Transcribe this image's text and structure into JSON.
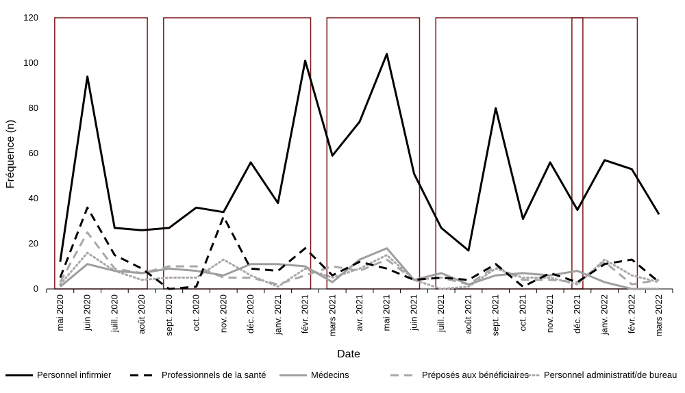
{
  "chart_data": {
    "type": "line",
    "xlabel": "Date",
    "ylabel": "Fréquence (n)",
    "ylim": [
      0,
      120
    ],
    "yticks": [
      0,
      20,
      40,
      60,
      80,
      100,
      120
    ],
    "grid": false,
    "legend_position": "bottom",
    "categories": [
      "mai 2020",
      "juin 2020",
      "juill. 2020",
      "août 2020",
      "sept. 2020",
      "oct. 2020",
      "nov. 2020",
      "déc. 2020",
      "janv. 2021",
      "févr. 2021",
      "mars 2021",
      "avr. 2021",
      "mai 2021",
      "juin 2021",
      "juill. 2021",
      "août 2021",
      "sept. 2021",
      "oct. 2021",
      "nov. 2021",
      "déc. 2021",
      "janv. 2022",
      "févr. 2022",
      "mars 2022"
    ],
    "highlight_ranges": [
      {
        "start": "mai 2020",
        "end": "août 2020"
      },
      {
        "start": "sept. 2020",
        "end": "févr. 2021"
      },
      {
        "start": "mars 2021",
        "end": "juin 2021"
      },
      {
        "start": "juill. 2021",
        "end": "déc. 2021"
      },
      {
        "start": "déc. 2021",
        "end": "févr. 2022"
      }
    ],
    "highlight_color": "#7b1519",
    "series": [
      {
        "name": "Personnel infirmier",
        "color": "#000000",
        "dash": "solid",
        "values": [
          12,
          94,
          27,
          26,
          27,
          36,
          34,
          56,
          38,
          101,
          59,
          74,
          104,
          51,
          27,
          17,
          80,
          31,
          56,
          35,
          57,
          53,
          33
        ]
      },
      {
        "name": "Professionnels de la santé",
        "color": "#000000",
        "dash": "dashed",
        "values": [
          5,
          36,
          15,
          9,
          0,
          1,
          32,
          9,
          8,
          18,
          6,
          12,
          9,
          4,
          5,
          4,
          11,
          1,
          7,
          3,
          11,
          13,
          3
        ]
      },
      {
        "name": "Médecins",
        "color": "#9e9e9e",
        "dash": "solid",
        "values": [
          1,
          11,
          8,
          7,
          9,
          8,
          6,
          11,
          11,
          10,
          3,
          13,
          18,
          4,
          7,
          2,
          6,
          7,
          6,
          8,
          3,
          0,
          0
        ]
      },
      {
        "name": "Préposés aux bénéficiaires",
        "color": "#a8a8a8",
        "dash": "dashed",
        "values": [
          3,
          25,
          9,
          7,
          10,
          10,
          5,
          5,
          2,
          6,
          10,
          8,
          13,
          4,
          5,
          2,
          10,
          4,
          4,
          3,
          12,
          2,
          4
        ]
      },
      {
        "name": "Personnel administratif/de bureau",
        "color": "#a8a8a8",
        "dash": "dotted",
        "values": [
          2,
          16,
          8,
          4,
          5,
          5,
          13,
          6,
          1,
          9,
          5,
          9,
          15,
          4,
          0,
          1,
          9,
          5,
          5,
          2,
          13,
          6,
          3
        ]
      }
    ]
  }
}
